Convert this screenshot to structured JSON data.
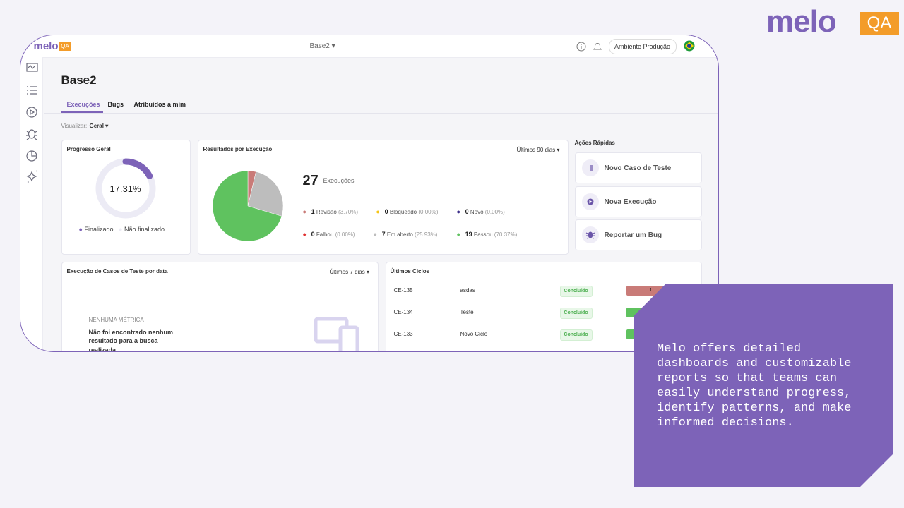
{
  "brand": {
    "logo": "melo",
    "badge": "QA"
  },
  "app": {
    "topbar": {
      "logo": "melo",
      "badge": "QA",
      "project": "Base2",
      "environment": "Ambiente Produção"
    },
    "page_title": "Base2",
    "tabs": [
      "Execuções",
      "Bugs",
      "Atribuídos a mim"
    ],
    "view": {
      "label": "Visualizar:",
      "value": "Geral"
    },
    "progress": {
      "title": "Progresso Geral",
      "value": 17.31,
      "label": "17.31%",
      "legend": [
        "Finalizado",
        "Não finalizado"
      ],
      "color": "#7d63b8"
    },
    "results": {
      "title": "Resultados por Execução",
      "period": "Últimos 90 dias",
      "total": 27,
      "total_label": "Execuções",
      "items": [
        {
          "count": 1,
          "name": "Revisão",
          "share": "(3.70%)",
          "color": "#c97b78"
        },
        {
          "count": 0,
          "name": "Bloqueado",
          "share": "(0.00%)",
          "color": "#f5c518"
        },
        {
          "count": 0,
          "name": "Novo",
          "share": "(0.00%)",
          "color": "#3d2f8a"
        },
        {
          "count": 0,
          "name": "Falhou",
          "share": "(0.00%)",
          "color": "#e03131"
        },
        {
          "count": 7,
          "name": "Em aberto",
          "share": "(25.93%)",
          "color": "#bdbdbd"
        },
        {
          "count": 19,
          "name": "Passou",
          "share": "(70.37%)",
          "color": "#5fc25f"
        }
      ]
    },
    "quick_actions": {
      "title": "Ações Rápidas",
      "items": [
        "Novo Caso de Teste",
        "Nova Execução",
        "Reportar um Bug"
      ]
    },
    "executions_chart": {
      "title": "Execução de Casos de Teste por data",
      "period": "Últimos 7 dias",
      "empty_title": "NENHUMA MÉTRICA",
      "empty_text": "Não foi encontrado nenhum resultado para a busca realizada."
    },
    "cycles": {
      "title": "Últimos Ciclos",
      "rows": [
        {
          "id": "CE-135",
          "name": "asdas",
          "status": "Concluído",
          "result": "1"
        },
        {
          "id": "CE-134",
          "name": "Teste",
          "status": "Concluído"
        },
        {
          "id": "CE-133",
          "name": "Novo Ciclo",
          "status": "Concluído"
        }
      ]
    }
  },
  "callout": "Melo offers detailed dashboards and customizable reports so that teams can easily understand progress, identify patterns, and make informed decisions."
}
